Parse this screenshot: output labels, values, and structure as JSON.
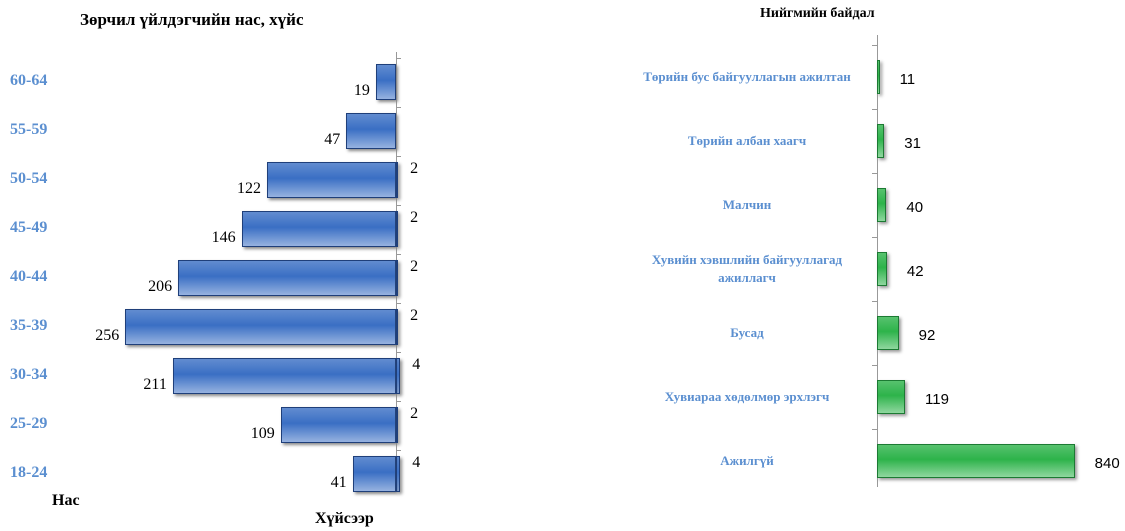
{
  "chart_data": [
    {
      "type": "hbar",
      "title": "Зөрчил үйлдэгчийн нас, хүйс",
      "ylabel": "Нас",
      "xlabel": "Хүйсээр",
      "categories": [
        "60-64",
        "55-59",
        "50-54",
        "45-49",
        "40-44",
        "35-39",
        "30-34",
        "25-29",
        "18-24"
      ],
      "series": [
        {
          "color": "#3a6fc4",
          "values": [
            19,
            47,
            122,
            146,
            206,
            256,
            211,
            109,
            41
          ]
        },
        {
          "color": "#3a6fc4",
          "values": [
            null,
            null,
            2,
            2,
            2,
            2,
            4,
            2,
            4
          ]
        }
      ],
      "xlim": [
        0,
        260
      ]
    },
    {
      "type": "hbar",
      "title": "Нийгмийн байдал",
      "categories": [
        "Төрийн бус байгууллагын ажилтан",
        "Төрийн албан хаагч",
        "Малчин",
        "Хувийн хэвшлийн байгууллагад ажиллагч",
        "Бусад",
        "Хувиараа хөдөлмөр эрхлэгч",
        "Ажилгүй"
      ],
      "values": [
        11,
        31,
        40,
        42,
        92,
        119,
        840
      ],
      "color": "#2db34a",
      "xlim": [
        0,
        850
      ]
    }
  ]
}
